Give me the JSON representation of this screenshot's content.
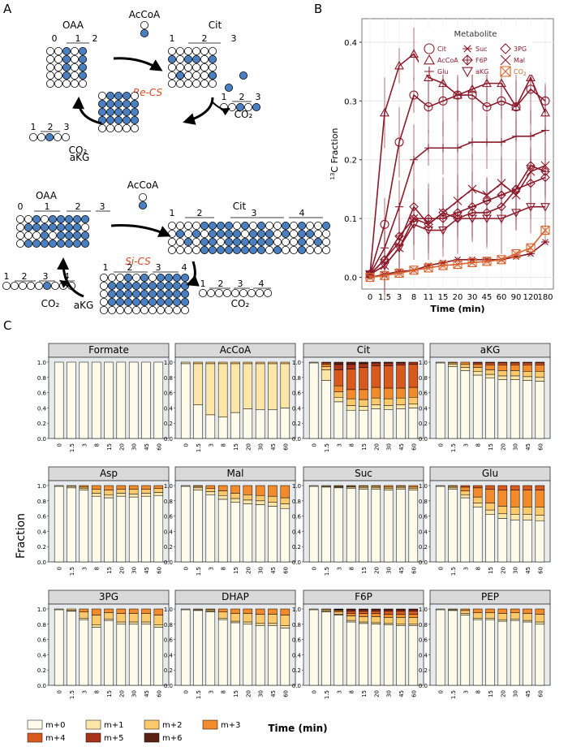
{
  "panels": {
    "a": "A",
    "b": "B",
    "c": "C"
  },
  "colors": {
    "blue": "#4a7fc1",
    "curve": "#8b1a2b",
    "curve_co2": "#d9622b",
    "enzyme": "#e0451f"
  },
  "panel_a": {
    "re": {
      "oaa": "OAA",
      "acoa": "AcCoA",
      "cit": "Cit",
      "akg": "aKG",
      "co2": "CO₂",
      "enzyme": "Re-CS",
      "oaa_idx": [
        "0",
        "1",
        "2"
      ],
      "cit_idx": [
        "1",
        "2",
        "3"
      ],
      "akg_idx": [
        "1",
        "2",
        "3"
      ],
      "co2_idx": [
        "1",
        "2",
        "3"
      ]
    },
    "si": {
      "oaa": "OAA",
      "acoa": "AcCoA",
      "cit": "Cit",
      "akg": "aKG",
      "co2a": "CO₂",
      "co2b": "CO₂",
      "enzyme": "Si-CS",
      "oaa_idx": [
        "0",
        "1",
        "2",
        "3"
      ],
      "cit_idx": [
        "1",
        "2",
        "3",
        "4"
      ],
      "akg_idx": [
        "1",
        "2",
        "3",
        "4"
      ],
      "co2a_idx": [
        "1",
        "2",
        "3",
        "4"
      ],
      "co2b_idx": [
        "1",
        "2",
        "3",
        "4"
      ]
    }
  },
  "chart_data": [
    {
      "type": "line",
      "title": "",
      "xlabel": "Time (min)",
      "ylabel": "13C Fraction",
      "ylabel_sup": "13",
      "ylabel_rest": "C Fraction",
      "legend_title": "Metabolite",
      "x": [
        "0",
        "1.5",
        "3",
        "8",
        "11",
        "15",
        "20",
        "30",
        "45",
        "60",
        "90",
        "120",
        "180"
      ],
      "ylim": [
        -0.02,
        0.44
      ],
      "yticks": [
        "0.0",
        "0.1",
        "0.2",
        "0.3",
        "0.4"
      ],
      "series": [
        {
          "name": "Cit",
          "marker": "circle",
          "values": [
            0.005,
            0.09,
            0.23,
            0.31,
            0.29,
            0.3,
            0.31,
            0.31,
            0.29,
            0.3,
            0.29,
            0.32,
            0.3
          ]
        },
        {
          "name": "AcCoA",
          "marker": "triangle",
          "values": [
            0.005,
            0.28,
            0.36,
            0.38,
            0.34,
            0.33,
            0.31,
            0.32,
            0.33,
            0.33,
            0.29,
            0.34,
            0.28
          ]
        },
        {
          "name": "Glu",
          "marker": "plus",
          "values": [
            0.005,
            0.05,
            0.12,
            0.2,
            0.22,
            0.22,
            0.22,
            0.23,
            0.23,
            0.23,
            0.24,
            0.24,
            0.25
          ]
        },
        {
          "name": "Suc",
          "marker": "asterisk",
          "values": [
            0.0,
            0.005,
            0.01,
            0.012,
            0.02,
            0.025,
            0.03,
            0.03,
            0.03,
            0.03,
            0.035,
            0.04,
            0.06
          ]
        },
        {
          "name": "F6P",
          "marker": "diamondplus",
          "values": [
            0.005,
            0.03,
            0.07,
            0.1,
            0.1,
            0.1,
            0.11,
            0.12,
            0.13,
            0.14,
            0.15,
            0.19,
            0.18
          ]
        },
        {
          "name": "aKG",
          "marker": "invtriangle",
          "values": [
            0.005,
            0.02,
            0.05,
            0.09,
            0.08,
            0.08,
            0.1,
            0.1,
            0.1,
            0.1,
            0.11,
            0.12,
            0.12
          ]
        },
        {
          "name": "3PG",
          "marker": "diamond",
          "values": [
            0.005,
            0.03,
            0.06,
            0.12,
            0.09,
            0.11,
            0.1,
            0.11,
            0.11,
            0.12,
            0.15,
            0.16,
            0.17
          ]
        },
        {
          "name": "Mal",
          "marker": "cross",
          "values": [
            0.005,
            0.02,
            0.05,
            0.1,
            0.09,
            0.11,
            0.13,
            0.15,
            0.14,
            0.16,
            0.14,
            0.18,
            0.19
          ]
        },
        {
          "name": "CO2",
          "marker": "boxx",
          "values": [
            0.0,
            0.003,
            0.007,
            0.012,
            0.016,
            0.02,
            0.022,
            0.025,
            0.027,
            0.03,
            0.04,
            0.05,
            0.08
          ]
        }
      ],
      "legend_labels": {
        "Cit": "Cit",
        "AcCoA": "AcCoA",
        "Glu": "Glu",
        "Suc": "Suc",
        "F6P": "F6P",
        "aKG": "aKG",
        "3PG": "3PG",
        "Mal": "Mal",
        "CO2_base": "CO",
        "CO2_sub": "2"
      }
    },
    {
      "type": "bar",
      "stacked": true,
      "xlabel": "Time (min)",
      "ylabel": "Fraction",
      "categories": [
        "0",
        "1.5",
        "3",
        "8",
        "15",
        "20",
        "30",
        "45",
        "60"
      ],
      "yticks": [
        "0.0",
        "0.2",
        "0.4",
        "0.6",
        "0.8",
        "1.0"
      ],
      "isotopologues": [
        "m+0",
        "m+1",
        "m+2",
        "m+3",
        "m+4",
        "m+5",
        "m+6"
      ],
      "iso_colors": [
        "#fffbeb",
        "#fde7a8",
        "#fcc96b",
        "#f28b2b",
        "#d95a1f",
        "#a8321a",
        "#5a2210"
      ],
      "facets": [
        {
          "name": "Formate",
          "bars": [
            [
              1.0
            ],
            [
              1.0
            ],
            [
              1.0
            ],
            [
              1.0
            ],
            [
              1.0
            ],
            [
              1.0
            ],
            [
              1.0
            ],
            [
              1.0
            ],
            [
              1.0
            ]
          ]
        },
        {
          "name": "AcCoA",
          "bars": [
            [
              0.98,
              0.02
            ],
            [
              0.44,
              0.54,
              0.02
            ],
            [
              0.31,
              0.67,
              0.02
            ],
            [
              0.28,
              0.7,
              0.02
            ],
            [
              0.34,
              0.64,
              0.02
            ],
            [
              0.39,
              0.59,
              0.02
            ],
            [
              0.38,
              0.6,
              0.02
            ],
            [
              0.38,
              0.6,
              0.02
            ],
            [
              0.4,
              0.58,
              0.02
            ]
          ]
        },
        {
          "name": "Cit",
          "bars": [
            [
              0.99,
              0.01
            ],
            [
              0.76,
              0.14,
              0.04,
              0.03,
              0.02,
              0.01
            ],
            [
              0.48,
              0.06,
              0.07,
              0.08,
              0.21,
              0.07,
              0.03
            ],
            [
              0.37,
              0.06,
              0.09,
              0.12,
              0.27,
              0.06,
              0.03
            ],
            [
              0.37,
              0.05,
              0.09,
              0.13,
              0.29,
              0.05,
              0.02
            ],
            [
              0.39,
              0.05,
              0.09,
              0.14,
              0.28,
              0.04,
              0.01
            ],
            [
              0.38,
              0.05,
              0.09,
              0.14,
              0.29,
              0.04,
              0.01
            ],
            [
              0.39,
              0.05,
              0.09,
              0.13,
              0.3,
              0.03,
              0.01
            ],
            [
              0.4,
              0.05,
              0.09,
              0.13,
              0.3,
              0.03
            ]
          ]
        },
        {
          "name": "aKG",
          "bars": [
            [
              0.99,
              0.01
            ],
            [
              0.94,
              0.03,
              0.02,
              0.01
            ],
            [
              0.89,
              0.04,
              0.04,
              0.03
            ],
            [
              0.83,
              0.05,
              0.05,
              0.04,
              0.02,
              0.01
            ],
            [
              0.79,
              0.05,
              0.06,
              0.06,
              0.03,
              0.01
            ],
            [
              0.77,
              0.05,
              0.07,
              0.07,
              0.03,
              0.01
            ],
            [
              0.77,
              0.05,
              0.07,
              0.07,
              0.03,
              0.01
            ],
            [
              0.76,
              0.05,
              0.07,
              0.08,
              0.03,
              0.01
            ],
            [
              0.75,
              0.05,
              0.08,
              0.08,
              0.03,
              0.01
            ]
          ]
        },
        {
          "name": "Asp",
          "bars": [
            [
              0.99,
              0.01
            ],
            [
              0.97,
              0.02,
              0.01
            ],
            [
              0.94,
              0.02,
              0.02,
              0.02
            ],
            [
              0.86,
              0.04,
              0.05,
              0.05
            ],
            [
              0.84,
              0.04,
              0.06,
              0.06
            ],
            [
              0.86,
              0.04,
              0.05,
              0.05
            ],
            [
              0.85,
              0.04,
              0.06,
              0.05
            ],
            [
              0.86,
              0.04,
              0.05,
              0.05
            ],
            [
              0.87,
              0.04,
              0.05,
              0.04
            ]
          ]
        },
        {
          "name": "Mal",
          "bars": [
            [
              0.99,
              0.01
            ],
            [
              0.94,
              0.03,
              0.02,
              0.01
            ],
            [
              0.88,
              0.04,
              0.04,
              0.04
            ],
            [
              0.82,
              0.05,
              0.06,
              0.07
            ],
            [
              0.78,
              0.05,
              0.07,
              0.1
            ],
            [
              0.76,
              0.05,
              0.07,
              0.12
            ],
            [
              0.75,
              0.05,
              0.07,
              0.13
            ],
            [
              0.73,
              0.05,
              0.08,
              0.14
            ],
            [
              0.7,
              0.06,
              0.08,
              0.16
            ]
          ]
        },
        {
          "name": "Suc",
          "bars": [
            [
              0.99,
              0.01
            ],
            [
              0.98,
              0.01,
              0.01
            ],
            [
              0.97,
              0.01,
              0.01,
              0.01
            ],
            [
              0.96,
              0.02,
              0.01,
              0.01
            ],
            [
              0.95,
              0.02,
              0.02,
              0.01
            ],
            [
              0.95,
              0.02,
              0.02,
              0.01
            ],
            [
              0.94,
              0.02,
              0.02,
              0.02
            ],
            [
              0.95,
              0.02,
              0.02,
              0.01
            ],
            [
              0.94,
              0.02,
              0.02,
              0.02
            ]
          ]
        },
        {
          "name": "Glu",
          "bars": [
            [
              0.99,
              0.01
            ],
            [
              0.95,
              0.02,
              0.02,
              0.01
            ],
            [
              0.84,
              0.04,
              0.05,
              0.05,
              0.02
            ],
            [
              0.72,
              0.05,
              0.08,
              0.12,
              0.03
            ],
            [
              0.62,
              0.06,
              0.09,
              0.18,
              0.05
            ],
            [
              0.57,
              0.06,
              0.1,
              0.21,
              0.06
            ],
            [
              0.55,
              0.07,
              0.1,
              0.22,
              0.06
            ],
            [
              0.55,
              0.07,
              0.1,
              0.22,
              0.06
            ],
            [
              0.54,
              0.07,
              0.11,
              0.22,
              0.06
            ]
          ]
        },
        {
          "name": "3PG",
          "bars": [
            [
              0.99,
              0.01
            ],
            [
              0.97,
              0.01,
              0.02
            ],
            [
              0.86,
              0.02,
              0.08,
              0.04
            ],
            [
              0.76,
              0.03,
              0.13,
              0.08
            ],
            [
              0.85,
              0.02,
              0.08,
              0.05
            ],
            [
              0.8,
              0.03,
              0.11,
              0.06
            ],
            [
              0.8,
              0.03,
              0.11,
              0.06
            ],
            [
              0.8,
              0.03,
              0.11,
              0.06
            ],
            [
              0.76,
              0.03,
              0.13,
              0.08
            ]
          ]
        },
        {
          "name": "DHAP",
          "bars": [
            [
              0.99,
              0.01
            ],
            [
              0.98,
              0.01,
              0.01
            ],
            [
              0.96,
              0.01,
              0.02,
              0.01
            ],
            [
              0.86,
              0.02,
              0.08,
              0.04
            ],
            [
              0.82,
              0.02,
              0.1,
              0.06
            ],
            [
              0.8,
              0.03,
              0.11,
              0.06
            ],
            [
              0.78,
              0.03,
              0.12,
              0.07
            ],
            [
              0.78,
              0.03,
              0.12,
              0.07
            ],
            [
              0.75,
              0.03,
              0.14,
              0.08
            ]
          ]
        },
        {
          "name": "F6P",
          "bars": [
            [
              0.99,
              0.01
            ],
            [
              0.96,
              0.01,
              0.02,
              0.01
            ],
            [
              0.92,
              0.01,
              0.03,
              0.02,
              0.01,
              0.005,
              0.005
            ],
            [
              0.83,
              0.02,
              0.06,
              0.03,
              0.03,
              0.02,
              0.01
            ],
            [
              0.81,
              0.02,
              0.07,
              0.04,
              0.03,
              0.02,
              0.01
            ],
            [
              0.8,
              0.02,
              0.08,
              0.04,
              0.03,
              0.02,
              0.01
            ],
            [
              0.79,
              0.02,
              0.08,
              0.04,
              0.04,
              0.02,
              0.01
            ],
            [
              0.78,
              0.02,
              0.09,
              0.04,
              0.04,
              0.02,
              0.01
            ],
            [
              0.78,
              0.02,
              0.09,
              0.04,
              0.04,
              0.02,
              0.01
            ]
          ]
        },
        {
          "name": "PEP",
          "bars": [
            [
              0.99,
              0.01
            ],
            [
              0.98,
              0.01,
              0.01
            ],
            [
              0.92,
              0.02,
              0.04,
              0.02
            ],
            [
              0.86,
              0.02,
              0.07,
              0.05
            ],
            [
              0.86,
              0.02,
              0.07,
              0.05
            ],
            [
              0.84,
              0.02,
              0.08,
              0.06
            ],
            [
              0.85,
              0.02,
              0.08,
              0.05
            ],
            [
              0.83,
              0.02,
              0.09,
              0.06
            ],
            [
              0.8,
              0.03,
              0.1,
              0.07
            ]
          ]
        }
      ]
    }
  ]
}
